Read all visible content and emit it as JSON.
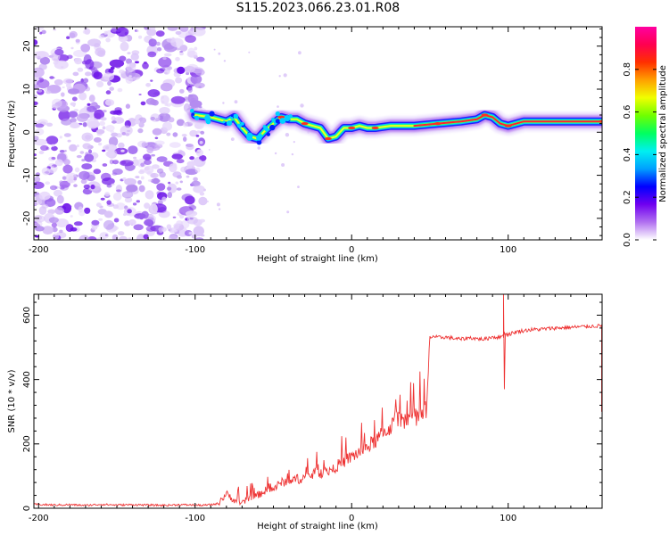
{
  "title": "S115.2023.066.23.01.R08",
  "chart_data": [
    {
      "type": "heatmap",
      "xlabel": "Height of straight line (km)",
      "ylabel": "Frequency (Hz)",
      "xlim": [
        -203,
        160
      ],
      "ylim": [
        -25,
        24.5
      ],
      "xticks": [
        -200,
        -100,
        0,
        100
      ],
      "yticks": [
        -20,
        -10,
        0,
        10,
        20
      ],
      "colorbar": {
        "label": "Normalized spectral amplitude",
        "range": [
          0,
          1
        ],
        "ticks": [
          0.0,
          0.2,
          0.4,
          0.6,
          0.8
        ],
        "colors": [
          "#ffffff",
          "#b070f0",
          "#7000f0",
          "#0000ff",
          "#00a0ff",
          "#00f0f0",
          "#00ff60",
          "#70ff00",
          "#f0ff00",
          "#ffa000",
          "#ff3000",
          "#ff0050",
          "#ff00a0"
        ]
      },
      "noise_region_x": [
        -203,
        -95
      ],
      "ridge": [
        {
          "x": -100,
          "y": 4
        },
        {
          "x": -90,
          "y": 3.5
        },
        {
          "x": -80,
          "y": 2.5
        },
        {
          "x": -75,
          "y": 3.5
        },
        {
          "x": -70,
          "y": 1
        },
        {
          "x": -65,
          "y": -1
        },
        {
          "x": -60,
          "y": -1.5
        },
        {
          "x": -55,
          "y": 0.5
        },
        {
          "x": -50,
          "y": 2
        },
        {
          "x": -45,
          "y": 3.5
        },
        {
          "x": -40,
          "y": 3
        },
        {
          "x": -35,
          "y": 3
        },
        {
          "x": -30,
          "y": 2
        },
        {
          "x": -25,
          "y": 1.5
        },
        {
          "x": -20,
          "y": 1
        },
        {
          "x": -15,
          "y": -1.5
        },
        {
          "x": -10,
          "y": -1
        },
        {
          "x": -5,
          "y": 1
        },
        {
          "x": 0,
          "y": 1
        },
        {
          "x": 5,
          "y": 1.5
        },
        {
          "x": 10,
          "y": 1
        },
        {
          "x": 15,
          "y": 1
        },
        {
          "x": 25,
          "y": 1.5
        },
        {
          "x": 40,
          "y": 1.5
        },
        {
          "x": 55,
          "y": 2
        },
        {
          "x": 70,
          "y": 2.5
        },
        {
          "x": 80,
          "y": 3
        },
        {
          "x": 85,
          "y": 4
        },
        {
          "x": 90,
          "y": 3.5
        },
        {
          "x": 95,
          "y": 2
        },
        {
          "x": 100,
          "y": 1.5
        },
        {
          "x": 110,
          "y": 2.5
        },
        {
          "x": 130,
          "y": 2.5
        },
        {
          "x": 160,
          "y": 2.5
        }
      ]
    },
    {
      "type": "line",
      "xlabel": "Height of straight line (km)",
      "ylabel": "SNR (10 * v/v)",
      "xlim": [
        -203,
        160
      ],
      "ylim": [
        0,
        665
      ],
      "xticks": [
        -200,
        -100,
        0,
        100
      ],
      "yticks": [
        0,
        200,
        400,
        600
      ],
      "color": "#ee3333",
      "series": [
        {
          "x": [
            -203,
            -190,
            -180,
            -170,
            -160,
            -150,
            -140,
            -130,
            -120,
            -110,
            -100,
            -95,
            -90,
            -85,
            -80,
            -75,
            -70,
            -65,
            -60,
            -55,
            -50,
            -45,
            -40,
            -35,
            -30,
            -25,
            -20,
            -15,
            -10,
            -5,
            0,
            5,
            10,
            15,
            20,
            25,
            30,
            35,
            40,
            45,
            48,
            50,
            52,
            55,
            60,
            65,
            70,
            75,
            80,
            85,
            90,
            95,
            97,
            100,
            105,
            110,
            115,
            120,
            130,
            140,
            150,
            160
          ],
          "y": [
            12,
            10,
            11,
            9,
            12,
            10,
            11,
            10,
            9,
            11,
            10,
            9,
            11,
            15,
            45,
            25,
            15,
            35,
            40,
            55,
            60,
            80,
            85,
            90,
            95,
            105,
            110,
            115,
            130,
            145,
            160,
            175,
            190,
            210,
            230,
            255,
            270,
            280,
            285,
            290,
            300,
            530,
            535,
            530,
            532,
            528,
            525,
            530,
            527,
            525,
            533,
            530,
            545,
            540,
            548,
            552,
            555,
            556,
            560,
            562,
            565,
            567
          ]
        }
      ]
    }
  ]
}
